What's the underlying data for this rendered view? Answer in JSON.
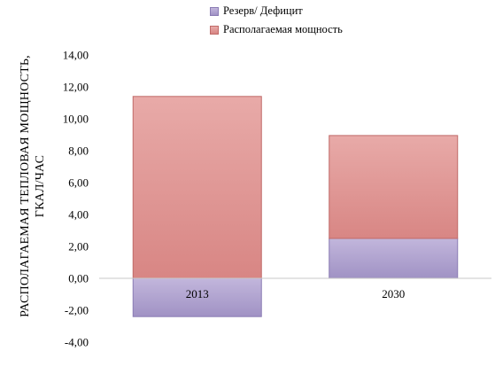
{
  "chart_data": {
    "type": "bar",
    "stacked": true,
    "categories": [
      "2013",
      "2030"
    ],
    "series": [
      {
        "name": "Резерв/ Дефицит",
        "values": [
          -2.4,
          2.5
        ],
        "color": "#a092c4"
      },
      {
        "name": "Располагаемая мощность",
        "values": [
          11.4,
          6.45
        ],
        "color": "#e09a98"
      }
    ],
    "ylabel_line1": "РАСПОЛАГАЕМАЯ ТЕПЛОВАЯ МОЩНОСТЬ,",
    "ylabel_line2": "ГКАЛ/ЧАС",
    "ylim": [
      -4,
      14
    ],
    "yticks": [
      "-4,00",
      "-2,00",
      "0,00",
      "2,00",
      "4,00",
      "6,00",
      "8,00",
      "10,00",
      "12,00",
      "14,00"
    ],
    "ytick_values": [
      -4,
      -2,
      0,
      2,
      4,
      6,
      8,
      10,
      12,
      14
    ],
    "legend_position": "top",
    "grid": false
  }
}
